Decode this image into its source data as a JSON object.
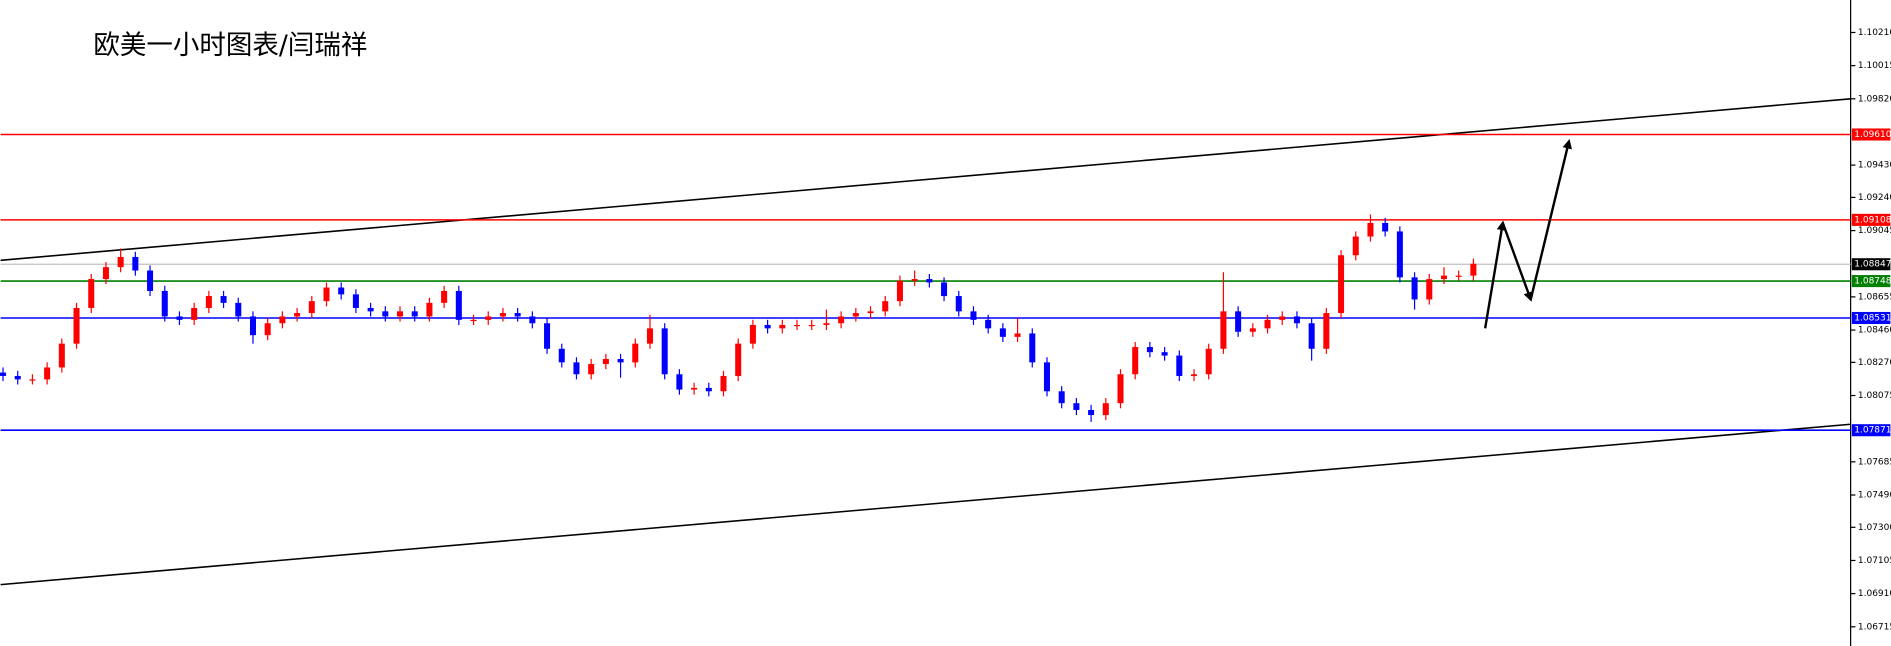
{
  "chart_data": {
    "type": "candlestick",
    "title": "欧美一小时图表/闫瑞祥",
    "up_color": "#ff0000",
    "down_color": "#0000ff",
    "ylim": [
      1.06602,
      1.10401
    ],
    "yticks": [
      {
        "value": 1.1021,
        "label": "1.10210"
      },
      {
        "value": 1.10015,
        "label": "1.10015"
      },
      {
        "value": 1.0982,
        "label": "1.09820"
      },
      {
        "value": 1.0943,
        "label": "1.09430"
      },
      {
        "value": 1.0924,
        "label": "1.09240"
      },
      {
        "value": 1.09045,
        "label": "1.09045"
      },
      {
        "value": 1.08655,
        "label": "1.08655"
      },
      {
        "value": 1.0846,
        "label": "1.08460"
      },
      {
        "value": 1.0827,
        "label": "1.08270"
      },
      {
        "value": 1.08075,
        "label": "1.08075"
      },
      {
        "value": 1.07685,
        "label": "1.07685"
      },
      {
        "value": 1.0749,
        "label": "1.07490"
      },
      {
        "value": 1.073,
        "label": "1.07300"
      },
      {
        "value": 1.07105,
        "label": "1.07105"
      },
      {
        "value": 1.0691,
        "label": "1.06910"
      },
      {
        "value": 1.06715,
        "label": "1.06715"
      }
    ],
    "levels": [
      {
        "value": 1.0961,
        "label": "1.09610",
        "color": "#ff0000"
      },
      {
        "value": 1.09108,
        "label": "1.09108",
        "color": "#ff0000"
      },
      {
        "value": 1.08748,
        "label": "1.08748",
        "color": "#008000"
      },
      {
        "value": 1.08531,
        "label": "1.08531",
        "color": "#0000ff"
      },
      {
        "value": 1.07871,
        "label": "1.07871",
        "color": "#0000ff"
      }
    ],
    "current_price": {
      "value": 1.08847,
      "label": "1.08847",
      "color": "#000000"
    },
    "trendlines": [
      {
        "start": 1.0887,
        "end": 1.0982,
        "color": "#000000"
      },
      {
        "start": 1.06963,
        "end": 1.07906,
        "color": "#000000"
      }
    ],
    "projection": {
      "values": [
        1.0847,
        1.0909,
        1.0864,
        1.0957
      ],
      "color": "#000000"
    },
    "open": [
      1.0821,
      1.0819,
      1.0817,
      1.0817,
      1.0824,
      1.0838,
      1.0859,
      1.0876,
      1.0883,
      1.0889,
      1.0881,
      1.0869,
      1.0854,
      1.0852,
      1.0859,
      1.0866,
      1.0862,
      1.0854,
      1.0843,
      1.085,
      1.0854,
      1.0856,
      1.0863,
      1.0871,
      1.0867,
      1.0859,
      1.0857,
      1.0854,
      1.0857,
      1.0854,
      1.0862,
      1.0869,
      1.0852,
      1.0852,
      1.0854,
      1.0856,
      1.0854,
      1.085,
      1.0835,
      1.0827,
      1.082,
      1.0826,
      1.0829,
      1.0827,
      1.0838,
      1.0847,
      1.082,
      1.0811,
      1.0812,
      1.081,
      1.0819,
      1.0838,
      1.0849,
      1.0847,
      1.0849,
      1.0849,
      1.0849,
      1.085,
      1.0854,
      1.0856,
      1.0857,
      1.0863,
      1.0875,
      1.0876,
      1.0874,
      1.0866,
      1.0857,
      1.0852,
      1.0847,
      1.0842,
      1.0844,
      1.0827,
      1.081,
      1.0803,
      1.0799,
      1.0796,
      1.0803,
      1.082,
      1.0836,
      1.0833,
      1.0831,
      1.0819,
      1.082,
      1.0835,
      1.0857,
      1.0845,
      1.0847,
      1.0852,
      1.0854,
      1.085,
      1.0835,
      1.0856,
      1.089,
      1.0901,
      1.0909,
      1.0904,
      1.0877,
      1.0864,
      1.0876,
      1.0878,
      1.0878
    ],
    "high": [
      1.0824,
      1.0822,
      1.082,
      1.0827,
      1.0841,
      1.0862,
      1.0879,
      1.0886,
      1.0894,
      1.0892,
      1.0884,
      1.0872,
      1.0857,
      1.0862,
      1.0869,
      1.0869,
      1.0865,
      1.0857,
      1.0853,
      1.0857,
      1.0859,
      1.0866,
      1.0874,
      1.0874,
      1.087,
      1.0862,
      1.086,
      1.086,
      1.086,
      1.0865,
      1.0872,
      1.0872,
      1.0855,
      1.0857,
      1.0859,
      1.0859,
      1.0857,
      1.0853,
      1.0838,
      1.083,
      1.0829,
      1.0832,
      1.0832,
      1.0841,
      1.0855,
      1.085,
      1.0823,
      1.0815,
      1.0815,
      1.0822,
      1.0841,
      1.0852,
      1.0852,
      1.0852,
      1.0852,
      1.0852,
      1.0858,
      1.0857,
      1.0859,
      1.086,
      1.0866,
      1.0878,
      1.0881,
      1.0879,
      1.0877,
      1.0869,
      1.086,
      1.0855,
      1.085,
      1.0853,
      1.0847,
      1.083,
      1.0813,
      1.0806,
      1.0802,
      1.0806,
      1.0823,
      1.0839,
      1.0839,
      1.0836,
      1.0834,
      1.0823,
      1.0838,
      1.088,
      1.086,
      1.085,
      1.0855,
      1.0857,
      1.0857,
      1.0853,
      1.0859,
      1.0893,
      1.0904,
      1.0914,
      1.0912,
      1.0907,
      1.088,
      1.0879,
      1.0883,
      1.0881,
      1.0888
    ],
    "low": [
      1.0816,
      1.0814,
      1.0814,
      1.0814,
      1.0821,
      1.0835,
      1.0856,
      1.0873,
      1.088,
      1.0878,
      1.0866,
      1.0851,
      1.0849,
      1.0849,
      1.0856,
      1.0859,
      1.0851,
      1.0838,
      1.084,
      1.0847,
      1.0851,
      1.0853,
      1.086,
      1.0864,
      1.0856,
      1.0854,
      1.0851,
      1.0851,
      1.0851,
      1.0851,
      1.0859,
      1.0849,
      1.0849,
      1.0849,
      1.0851,
      1.0851,
      1.0847,
      1.0832,
      1.0824,
      1.0817,
      1.0817,
      1.0823,
      1.0818,
      1.0824,
      1.0835,
      1.0817,
      1.0808,
      1.0808,
      1.0807,
      1.0807,
      1.0816,
      1.0835,
      1.0844,
      1.0844,
      1.0846,
      1.0846,
      1.0846,
      1.0847,
      1.0851,
      1.0853,
      1.0854,
      1.086,
      1.0872,
      1.0871,
      1.0863,
      1.0854,
      1.0849,
      1.0844,
      1.0839,
      1.0839,
      1.0824,
      1.0807,
      1.08,
      1.0796,
      1.0792,
      1.0793,
      1.08,
      1.0817,
      1.083,
      1.0828,
      1.0816,
      1.0816,
      1.0817,
      1.0832,
      1.0842,
      1.0842,
      1.0844,
      1.0849,
      1.0847,
      1.0828,
      1.0832,
      1.0853,
      1.0887,
      1.0898,
      1.0901,
      1.0874,
      1.0858,
      1.0861,
      1.0873,
      1.0875,
      1.0875
    ],
    "close": [
      1.0819,
      1.0817,
      1.0817,
      1.0824,
      1.0838,
      1.0859,
      1.0876,
      1.0883,
      1.0889,
      1.0881,
      1.0869,
      1.0854,
      1.0852,
      1.0859,
      1.0866,
      1.0862,
      1.0854,
      1.0843,
      1.085,
      1.0854,
      1.0856,
      1.0863,
      1.0871,
      1.0867,
      1.0859,
      1.0857,
      1.0854,
      1.0857,
      1.0854,
      1.0862,
      1.0869,
      1.0852,
      1.0852,
      1.0854,
      1.0856,
      1.0854,
      1.085,
      1.0835,
      1.0827,
      1.082,
      1.0826,
      1.0829,
      1.0827,
      1.0838,
      1.0847,
      1.082,
      1.0811,
      1.0812,
      1.081,
      1.0819,
      1.0838,
      1.0849,
      1.0847,
      1.0849,
      1.0849,
      1.0849,
      1.085,
      1.0854,
      1.0856,
      1.0857,
      1.0863,
      1.0875,
      1.0876,
      1.0874,
      1.0866,
      1.0857,
      1.0852,
      1.0847,
      1.0842,
      1.0844,
      1.0827,
      1.081,
      1.0803,
      1.0799,
      1.0796,
      1.0803,
      1.082,
      1.0836,
      1.0833,
      1.0831,
      1.0819,
      1.082,
      1.0835,
      1.0857,
      1.0845,
      1.0847,
      1.0852,
      1.0854,
      1.085,
      1.0835,
      1.0856,
      1.089,
      1.0901,
      1.0909,
      1.0904,
      1.0877,
      1.0864,
      1.0876,
      1.0878,
      1.0878,
      1.0885
    ]
  }
}
